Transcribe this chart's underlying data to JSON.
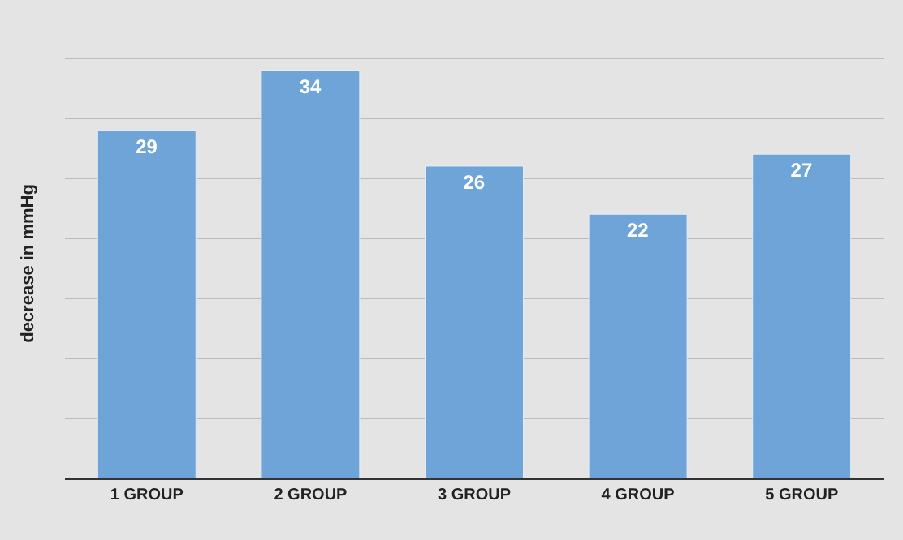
{
  "chart_data": {
    "type": "bar",
    "ylabel": "decrease in mmHg",
    "categories": [
      "1 GROUP",
      "2 GROUP",
      "3 GROUP",
      "4 GROUP",
      "5 GROUP"
    ],
    "values": [
      29,
      34,
      26,
      22,
      27
    ],
    "color": "#6fa4d9",
    "yticks": [
      {
        "value": 0,
        "label": null
      },
      {
        "value": 5,
        "label": null
      },
      {
        "value": 10,
        "label": null
      },
      {
        "value": 15,
        "label": null
      },
      {
        "value": 20,
        "label": null
      },
      {
        "value": 25,
        "label": null
      },
      {
        "value": 30,
        "label": null
      },
      {
        "value": 35,
        "label": null
      }
    ],
    "grid": "y",
    "data_labels": true,
    "legend": false,
    "tick_labels": "x"
  }
}
